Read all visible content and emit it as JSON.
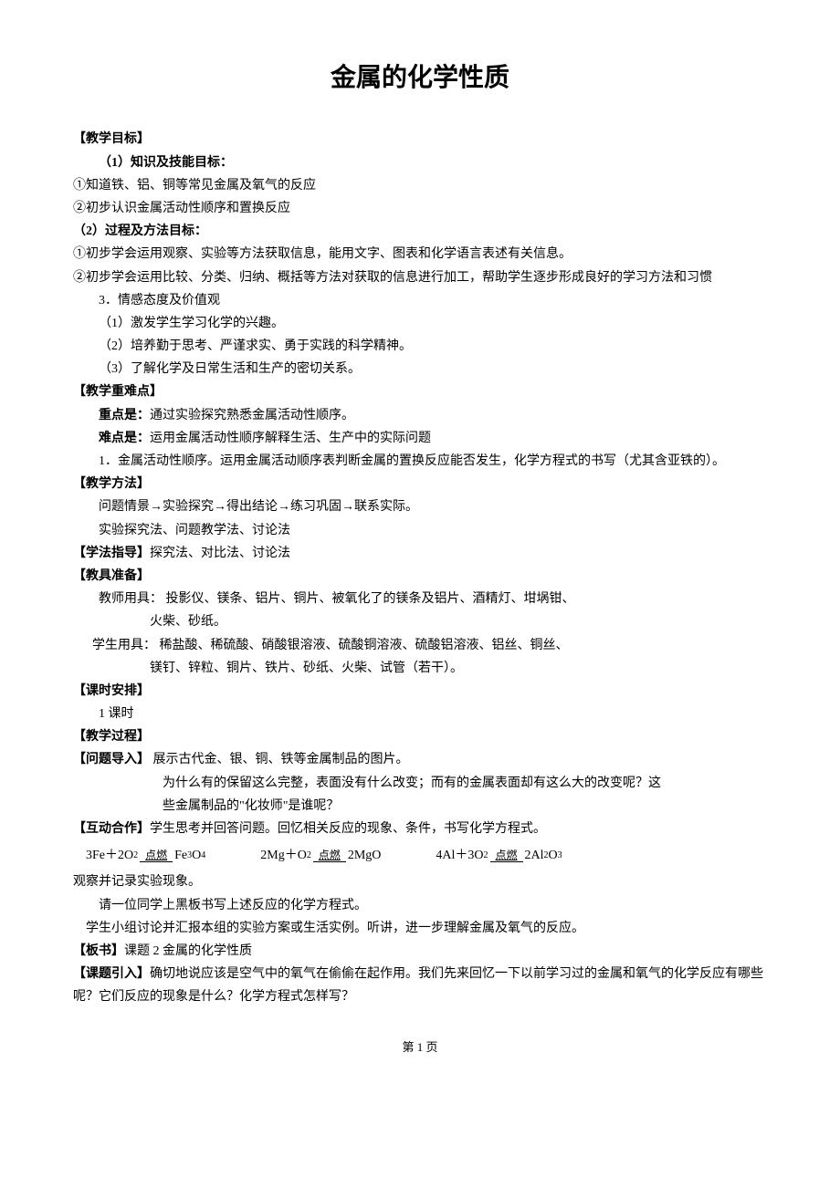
{
  "title": "金属的化学性质",
  "sections": {
    "objectives": {
      "header": "【教学目标】",
      "sub1": {
        "header": "（1）知识及技能目标：",
        "items": [
          "①知道铁、铝、铜等常见金属及氧气的反应",
          "②初步认识金属活动性顺序和置换反应"
        ]
      },
      "sub2": {
        "header": "（2）过程及方法目标：",
        "items": [
          "①初步学会运用观察、实验等方法获取信息，能用文字、图表和化学语言表述有关信息。",
          "②初步学会运用比较、分类、归纳、概括等方法对获取的信息进行加工，帮助学生逐步形成良好的学习方法和习惯"
        ]
      },
      "sub3": {
        "header": "3．情感态度及价值观",
        "items": [
          "（1）激发学生学习化学的兴趣。",
          "（2）培养勤于思考、严谨求实、勇于实践的科学精神。",
          "（3）了解化学及日常生活和生产的密切关系。"
        ]
      }
    },
    "keypoints": {
      "header": "【教学重难点】",
      "zhong_label": "重点是：",
      "zhong_text": "通过实验探究熟悉金属活动性顺序。",
      "nan_label": "难点是：",
      "nan_text": "运用金属活动性顺序解释生活、生产中的实际问题",
      "extra": "1．金属活动性顺序。运用金属活动顺序表判断金属的置换反应能否发生，化学方程式的书写（尤其含亚铁的）。"
    },
    "methods": {
      "header": "【教学方法】",
      "items": [
        "问题情景→实验探究→得出结论→练习巩固→联系实际。",
        "实验探究法、问题教学法、讨论法"
      ]
    },
    "study_guide": {
      "header": "【学法指导】",
      "text": "探究法、对比法、讨论法"
    },
    "materials": {
      "header": "【教具准备】",
      "teacher_label": "教师用具：",
      "teacher_items": [
        "投影仪、镁条、铝片、铜片、被氧化了的镁条及铝片、酒精灯、坩埚钳、",
        "火柴、砂纸。"
      ],
      "student_label": "学生用具：",
      "student_items": [
        "稀盐酸、稀硫酸、硝酸银溶液、硫酸铜溶液、硫酸铝溶液、铝丝、铜丝、",
        "镁钉、锌粒、铜片、铁片、砂纸、火柴、试管（若干）。"
      ]
    },
    "schedule": {
      "header": "【课时安排】",
      "text": "1 课时"
    },
    "process": {
      "header": "【教学过程】",
      "intro_label": "【问题导入】",
      "intro_text": "展示古代金、银、铜、铁等金属制品的图片。",
      "intro_lines": [
        "为什么有的保留这么完整，表面没有什么改变；而有的金属表面却有这么大的改变呢？这",
        "些金属制品的\"化妆师\"是谁呢？"
      ],
      "coop_label": "【互动合作】",
      "coop_text": "学生思考并回答问题。回忆相关反应的现象、条件，书写化学方程式。",
      "equations": {
        "arrow_label": "点燃",
        "eq1_left": "3Fe＋2O",
        "eq1_sub1": "2",
        "eq1_right": "Fe",
        "eq1_sub2": "3",
        "eq1_right2": "O",
        "eq1_sub3": "4",
        "eq2_left": "2Mg＋O",
        "eq2_sub1": "2",
        "eq2_right": "2MgO",
        "eq3_left": "4Al＋3O",
        "eq3_sub1": "2",
        "eq3_right": "2Al",
        "eq3_sub2": "2",
        "eq3_right2": "O",
        "eq3_sub3": "3"
      },
      "observe": "观察并记录实验现象。",
      "line1": "请一位同学上黑板书写上述反应的化学方程式。",
      "line2": "学生小组讨论并汇报本组的实验方案或生活实例。听讲，进一步理解金属及氧气的反应。",
      "board_label": "【板书】",
      "board_text": "课题 2 金属的化学性质",
      "lead_label": "【课题引入】",
      "lead_text": "确切地说应该是空气中的氧气在偷偷在起作用。我们先来回忆一下以前学习过的金属和氧气的化学反应有哪些呢？它们反应的现象是什么？化学方程式怎样写？"
    }
  },
  "footer": "第 1 页"
}
